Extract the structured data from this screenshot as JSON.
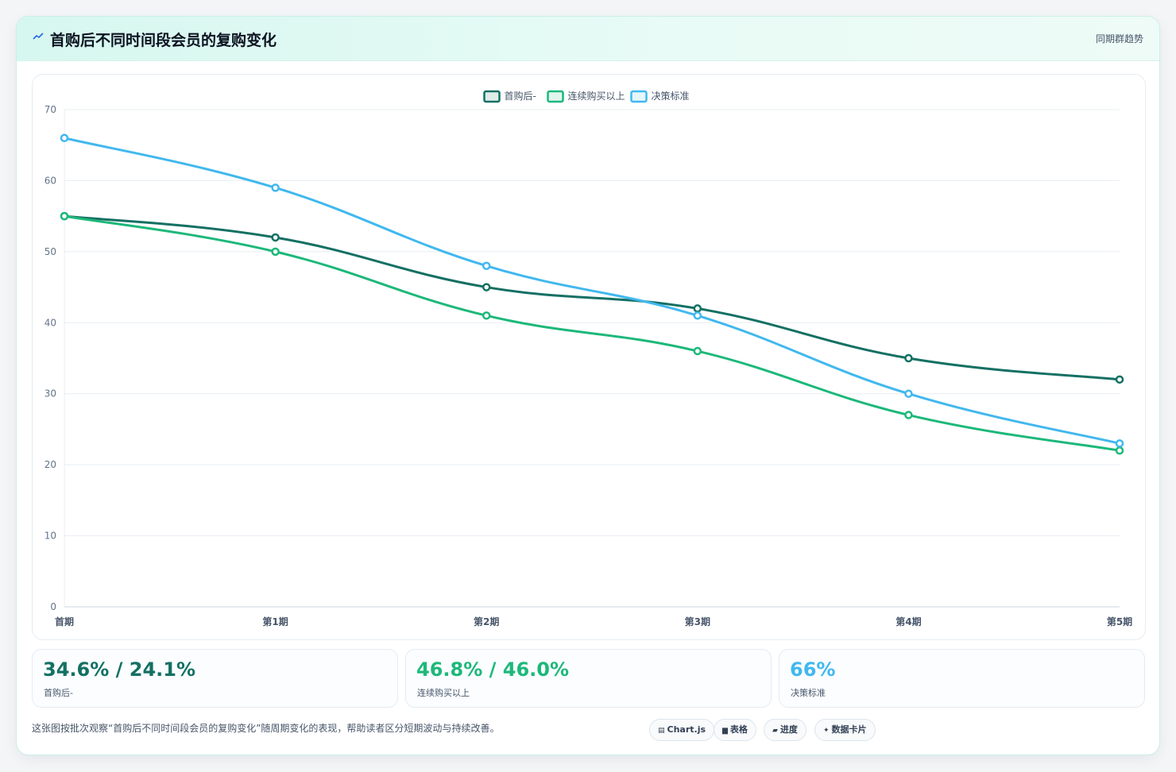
{
  "header": {
    "title": "首购后不同时间段会员的复购变化",
    "tag": "同期群趋势"
  },
  "chart_data": {
    "type": "line",
    "categories": [
      "首期",
      "第1期",
      "第2期",
      "第3期",
      "第4期",
      "第5期"
    ],
    "series": [
      {
        "name": "首购后-",
        "values": [
          55,
          52,
          45,
          42,
          35,
          32
        ],
        "color": "#137063"
      },
      {
        "name": "连续购买以上",
        "values": [
          55,
          50,
          41,
          36,
          27,
          22
        ],
        "color": "#1db87a"
      },
      {
        "name": "决策标准",
        "values": [
          66,
          59,
          48,
          41,
          30,
          23
        ],
        "color": "#41b8ee"
      }
    ],
    "ylim": [
      0,
      70
    ],
    "yticks": [
      0,
      10,
      20,
      30,
      40,
      50,
      60,
      70
    ],
    "grid": true,
    "legend": "top-center",
    "smooth": true
  },
  "stats": [
    {
      "value": "34.6% / 24.1%",
      "label": "首购后-",
      "color": "#137063"
    },
    {
      "value": "46.8% / 46.0%",
      "label": "连续购买以上",
      "color": "#1db87a"
    },
    {
      "value": "66%",
      "label": "决策标准",
      "color": "#41b8ee"
    }
  ],
  "footer": {
    "description": "这张图按批次观察“首购后不同时间段会员的复购变化”随周期变化的表现，帮助读者区分短期波动与持续改善。"
  },
  "pills": [
    {
      "icon": "chart-icon",
      "glyph": "▤",
      "label": "Chart.js"
    },
    {
      "icon": "table-icon",
      "glyph": "▆",
      "label": "表格"
    },
    {
      "icon": "progress-icon",
      "glyph": "▰",
      "label": "进度"
    },
    {
      "icon": "data-card-icon",
      "glyph": "✦",
      "label": "数据卡片"
    }
  ]
}
